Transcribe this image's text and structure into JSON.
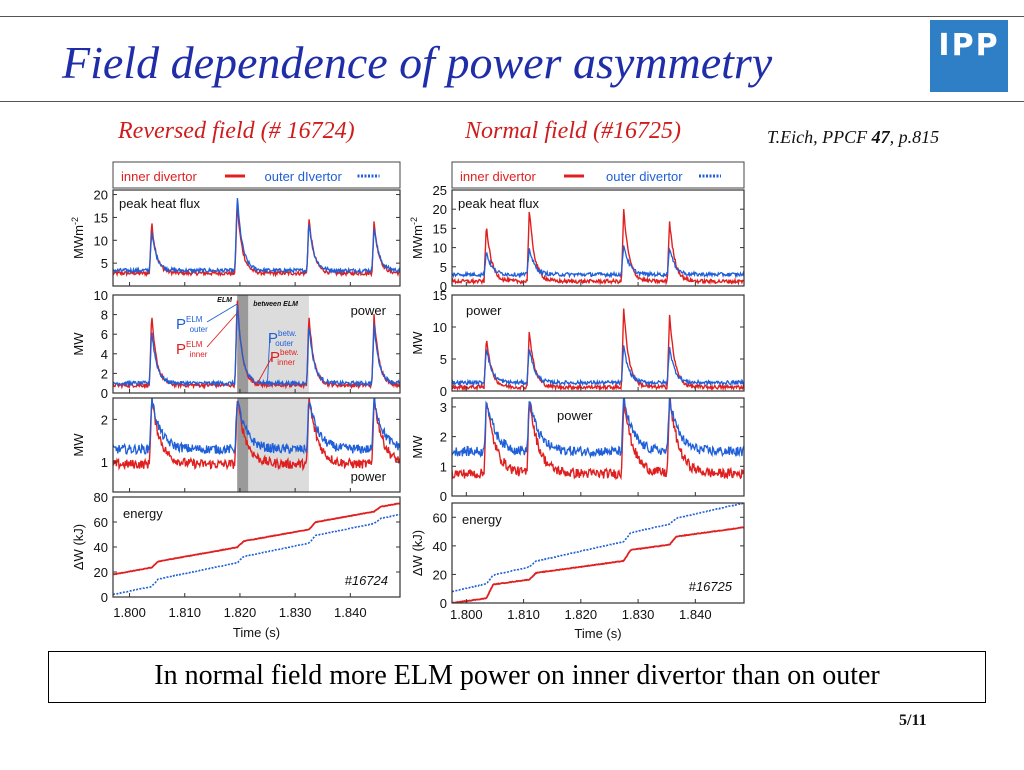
{
  "slide": {
    "title": "Field dependence of power asymmetry",
    "logo_text": "IPP",
    "subtitle_left": "Reversed field (# 16724)",
    "subtitle_right": "Normal field (#16725)",
    "citation_prefix": "T.Eich, PPCF ",
    "citation_volume": "47",
    "citation_suffix": ", p.815",
    "conclusion": "In normal field more ELM power on inner divertor than on outer",
    "page_number": "5/11"
  },
  "colors": {
    "inner": "#e02020",
    "outer": "#1f5fd8",
    "title": "#1f2ea8",
    "subtitle": "#d01c1c"
  },
  "chart_data": [
    {
      "type": "line",
      "shot": "#16724",
      "legend": [
        "inner divertor",
        "outer dIvertor"
      ],
      "xlabel": "Time (s)",
      "x_ticks": [
        "1.800",
        "1.810",
        "1.820",
        "1.830",
        "1.840"
      ],
      "xlim": [
        1.797,
        1.849
      ],
      "elm_times": [
        1.804,
        1.8195,
        1.8325,
        1.8443
      ],
      "elm_window": [
        1.8195,
        1.8215
      ],
      "between_window": [
        1.8215,
        1.8325
      ],
      "panels": [
        {
          "label": "peak heat flux",
          "ylabel": "MWm",
          "ylabel_sup": "-2",
          "ylim": [
            0,
            21
          ],
          "ticks": [
            5,
            10,
            15,
            20
          ],
          "series": [
            {
              "name": "inner divertor",
              "base": 2.8,
              "peaks": [
                14,
                18,
                15,
                14
              ]
            },
            {
              "name": "outer dIvertor",
              "base": 3.4,
              "peaks": [
                12,
                20,
                14,
                13
              ]
            }
          ]
        },
        {
          "label": "power",
          "ylabel": "MW",
          "ylim": [
            0,
            10
          ],
          "ticks": [
            0,
            2,
            4,
            6,
            8,
            10
          ],
          "series": [
            {
              "name": "inner divertor",
              "base": 0.8,
              "peaks": [
                8,
                9.7,
                8,
                8
              ]
            },
            {
              "name": "outer dIvertor",
              "base": 1.0,
              "peaks": [
                6.5,
                9.3,
                7,
                7
              ]
            }
          ]
        },
        {
          "label": "power",
          "ylabel": "MW",
          "ylim": [
            0.3,
            2.5
          ],
          "ticks": [
            1,
            2
          ],
          "series": [
            {
              "name": "inner divertor",
              "base": 0.95,
              "peaks": [
                2.5,
                2.5,
                2.5,
                2.5
              ]
            },
            {
              "name": "outer dIvertor",
              "base": 1.3,
              "peaks": [
                2.5,
                2.5,
                2.5,
                2.5
              ]
            }
          ]
        },
        {
          "label": "energy",
          "ylabel": "ΔW (kJ)",
          "ylim": [
            0,
            80
          ],
          "ticks": [
            0,
            20,
            40,
            60,
            80
          ],
          "energy": true,
          "series": [
            {
              "name": "inner divertor",
              "start": 18,
              "end": 75,
              "steps": [
                4,
                4,
                5,
                3
              ]
            },
            {
              "name": "outer dIvertor",
              "start": 2,
              "end": 66,
              "steps": [
                5,
                4,
                5,
                3
              ]
            }
          ]
        }
      ],
      "annotations": {
        "elm_label": "ELM",
        "between_label": "between ELM",
        "p_outer_elm": "P",
        "p_outer_elm_sup": "ELM",
        "p_outer_elm_sub": "outer",
        "p_inner_elm": "P",
        "p_inner_elm_sup": "ELM",
        "p_inner_elm_sub": "inner",
        "p_outer_betw": "P",
        "p_outer_betw_sup": "betw.",
        "p_outer_betw_sub": "outer",
        "p_inner_betw": "P",
        "p_inner_betw_sup": "betw.",
        "p_inner_betw_sub": "inner"
      }
    },
    {
      "type": "line",
      "shot": "#16725",
      "legend": [
        "inner divertor",
        "outer divertor"
      ],
      "xlabel": "Time (s)",
      "x_ticks": [
        "1.800",
        "1.810",
        "1.820",
        "1.830",
        "1.840"
      ],
      "xlim": [
        1.7975,
        1.8485
      ],
      "elm_times": [
        1.8035,
        1.811,
        1.8275,
        1.8355
      ],
      "panels": [
        {
          "label": "peak heat flux",
          "ylabel": "MWm",
          "ylabel_sup": "-2",
          "ylim": [
            0,
            25
          ],
          "ticks": [
            0,
            5,
            10,
            15,
            20,
            25
          ],
          "series": [
            {
              "name": "inner divertor",
              "base": 1.2,
              "peaks": [
                16,
                20,
                20,
                17
              ]
            },
            {
              "name": "outer divertor",
              "base": 3.0,
              "peaks": [
                9,
                10,
                11,
                10
              ]
            }
          ]
        },
        {
          "label": "power",
          "ylabel": "MW",
          "ylim": [
            0,
            15
          ],
          "ticks": [
            0,
            5,
            10,
            15
          ],
          "series": [
            {
              "name": "inner divertor",
              "base": 0.6,
              "peaks": [
                8.5,
                9.5,
                13,
                12
              ]
            },
            {
              "name": "outer divertor",
              "base": 1.3,
              "peaks": [
                7,
                7,
                7,
                7
              ]
            }
          ]
        },
        {
          "label": "power",
          "ylabel": "MW",
          "ylim": [
            0,
            3.3
          ],
          "ticks": [
            0,
            1,
            2,
            3
          ],
          "series": [
            {
              "name": "inner divertor",
              "base": 0.75,
              "peaks": [
                3.3,
                3.3,
                3.3,
                3.3
              ]
            },
            {
              "name": "outer divertor",
              "base": 1.5,
              "peaks": [
                3.3,
                3.3,
                3.3,
                3.3
              ]
            }
          ]
        },
        {
          "label": "energy",
          "ylabel": "ΔW (kJ)",
          "ylim": [
            0,
            70
          ],
          "ticks": [
            0,
            20,
            40,
            60
          ],
          "energy": true,
          "series": [
            {
              "name": "inner divertor",
              "start": 0,
              "end": 53,
              "steps": [
                9,
                4,
                7,
                5
              ]
            },
            {
              "name": "outer divertor",
              "start": 8,
              "end": 70,
              "steps": [
                5,
                3,
                5,
                3
              ]
            }
          ]
        }
      ]
    }
  ]
}
